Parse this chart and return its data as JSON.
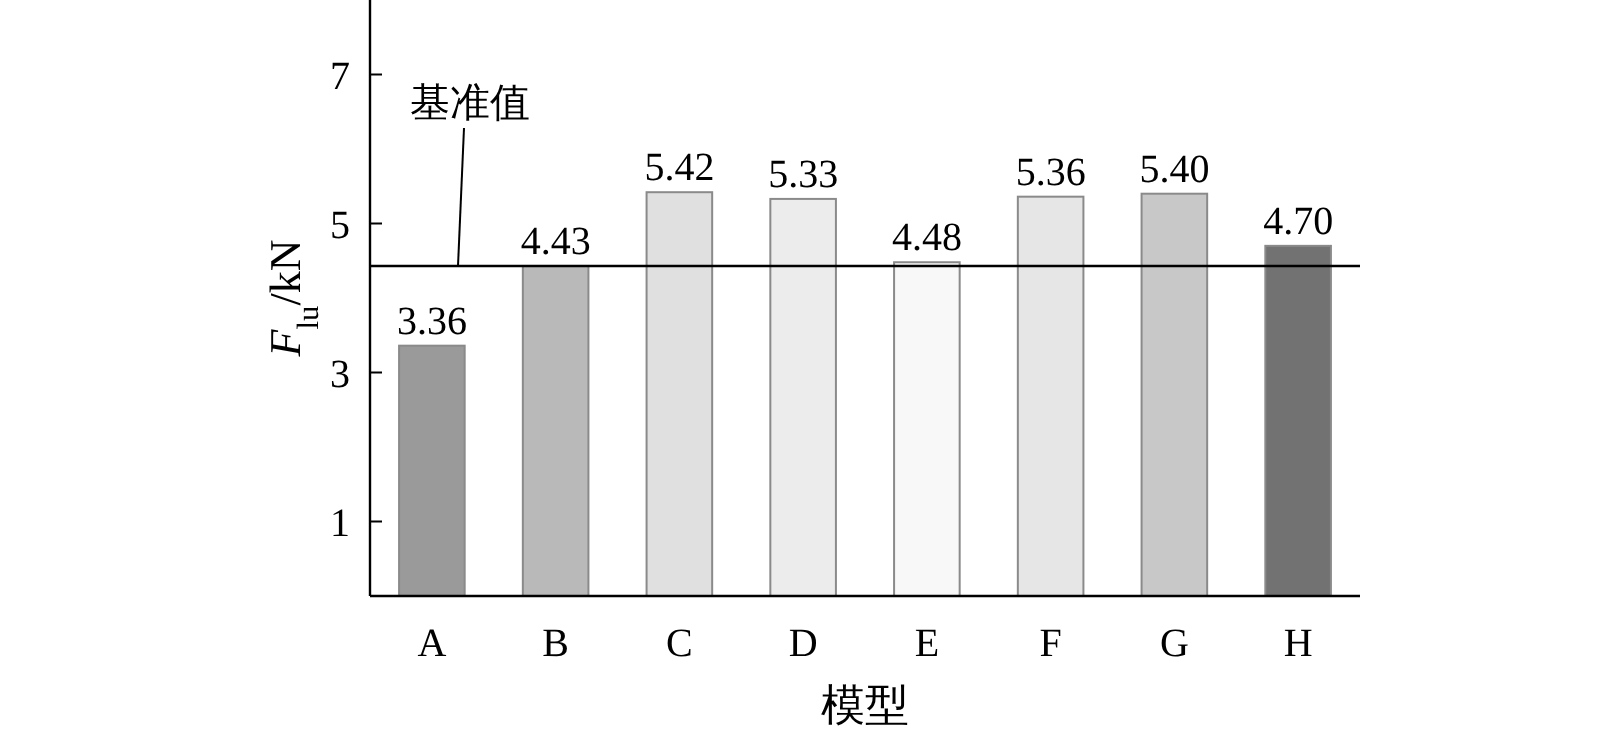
{
  "chart_data": {
    "type": "bar",
    "xlabel": "模型",
    "ylabel": "*F*$_{lu}$/kN",
    "categories": [
      "A",
      "B",
      "C",
      "D",
      "E",
      "F",
      "G",
      "H"
    ],
    "values": [
      3.36,
      4.43,
      5.42,
      5.33,
      4.48,
      5.36,
      5.4,
      4.7
    ],
    "value_labels": [
      "3.36",
      "4.43",
      "5.42",
      "5.33",
      "4.48",
      "5.36",
      "5.40",
      "4.70"
    ],
    "colors": [
      "#9a9a9a",
      "#b9b9b9",
      "#e0e0e0",
      "#ececec",
      "#f8f8f8",
      "#e6e6e6",
      "#c8c8c8",
      "#727272"
    ],
    "ylim": [
      0,
      8
    ],
    "yticks": [
      1,
      3,
      5,
      7
    ],
    "ref_lines": [
      {
        "axis": "y",
        "value": 4.43,
        "label": "基准值",
        "color": "#000000"
      }
    ]
  }
}
